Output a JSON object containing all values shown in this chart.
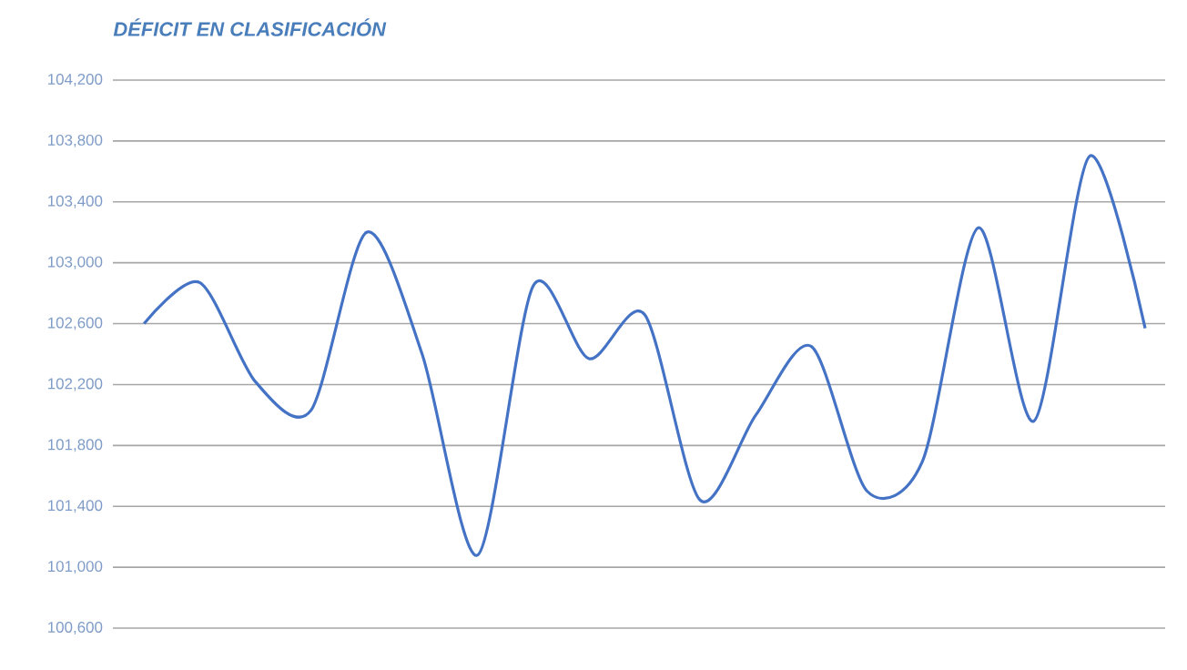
{
  "chart_data": {
    "type": "line",
    "title": "DÉFICIT EN CLASIFICACIÓN",
    "categories": [
      null,
      null,
      null,
      null,
      null,
      null,
      null,
      null,
      null,
      null,
      null,
      null,
      null,
      null,
      null,
      null,
      null,
      null,
      null
    ],
    "values": [
      102600,
      102870,
      102220,
      102030,
      103200,
      102400,
      101080,
      102850,
      102370,
      102660,
      101440,
      102000,
      102450,
      101500,
      101700,
      103230,
      101960,
      103700,
      102570
    ],
    "color": "#4472c4",
    "ylim": [
      100600,
      104200
    ],
    "yticks": [
      {
        "value": 100600,
        "label": "100,600"
      },
      {
        "value": 101000,
        "label": "101,000"
      },
      {
        "value": 101400,
        "label": "101,400"
      },
      {
        "value": 101800,
        "label": "101,800"
      },
      {
        "value": 102200,
        "label": "102,200"
      },
      {
        "value": 102600,
        "label": "102,600"
      },
      {
        "value": 103000,
        "label": "103,000"
      },
      {
        "value": 103400,
        "label": "103,400"
      },
      {
        "value": 103800,
        "label": "103,800"
      },
      {
        "value": 104200,
        "label": "104,200"
      }
    ],
    "grid": "y",
    "marker": "none",
    "line_style": "solid"
  }
}
